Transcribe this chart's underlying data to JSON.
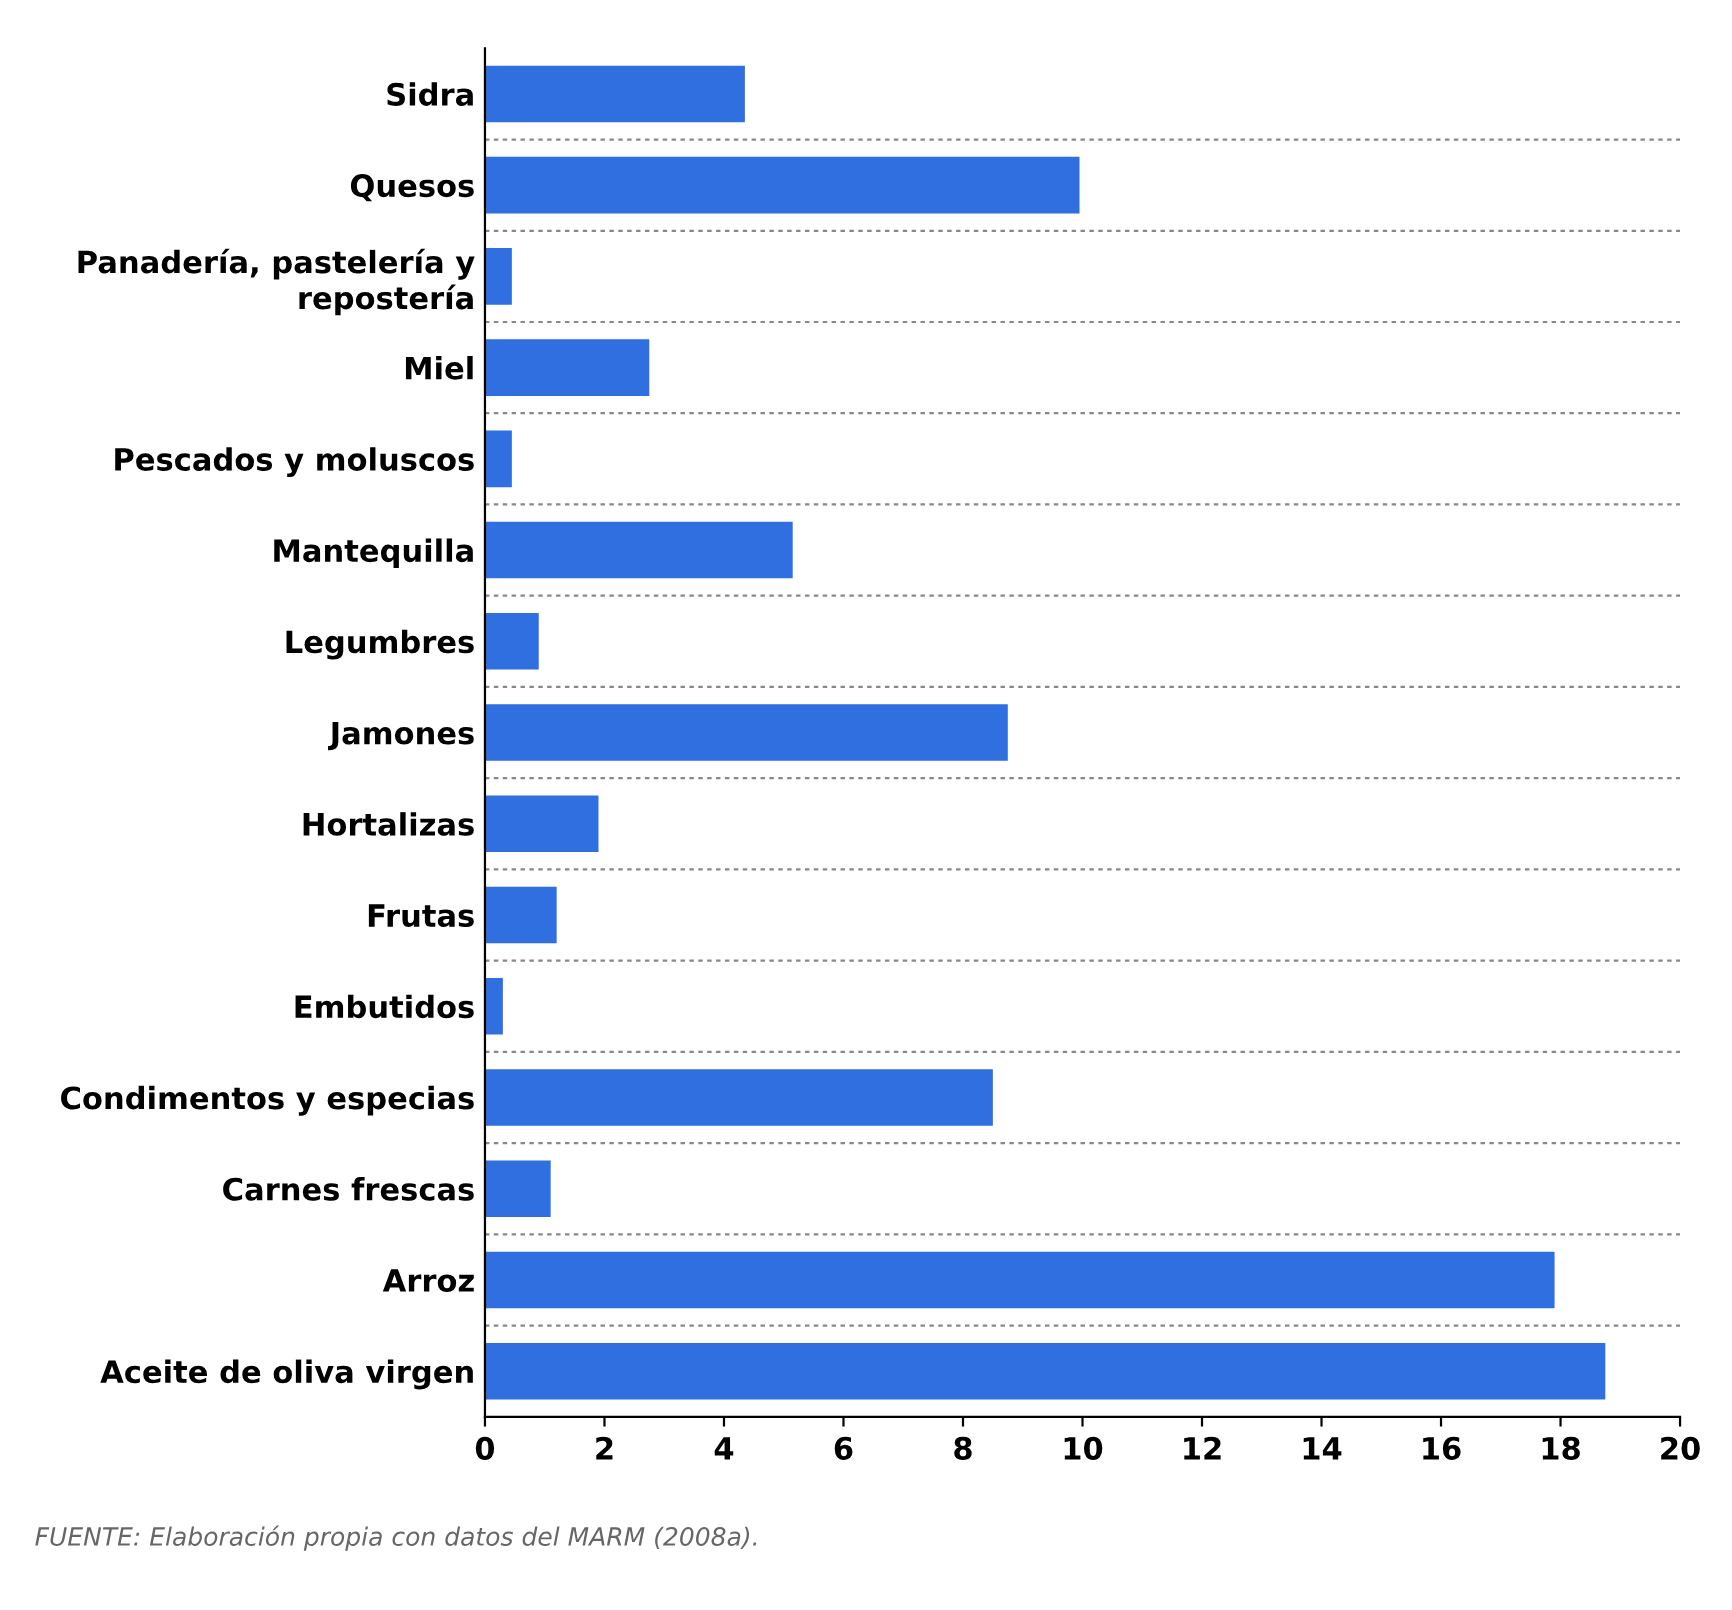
{
  "chart_data": {
    "type": "bar",
    "orientation": "horizontal",
    "categories": [
      "Sidra",
      "Quesos",
      "Panadería, pastelería y\nrepostería",
      "Miel",
      "Pescados y moluscos",
      "Mantequilla",
      "Legumbres",
      "Jamones",
      "Hortalizas",
      "Frutas",
      "Embutidos",
      "Condimentos y especias",
      "Carnes frescas",
      "Arroz",
      "Aceite de oliva virgen"
    ],
    "values": [
      4.35,
      9.95,
      0.45,
      2.75,
      0.45,
      5.15,
      0.9,
      8.75,
      1.9,
      1.2,
      0.3,
      8.5,
      1.1,
      17.9,
      18.75
    ],
    "color": "#2f6fdf",
    "xlim": [
      0,
      20
    ],
    "xticks": [
      0,
      2,
      4,
      6,
      8,
      10,
      12,
      14,
      16,
      18,
      20
    ],
    "grid": "y",
    "annotations": [
      "FUENTE: Elaboración propia con datos del MARM (2008a)."
    ]
  }
}
